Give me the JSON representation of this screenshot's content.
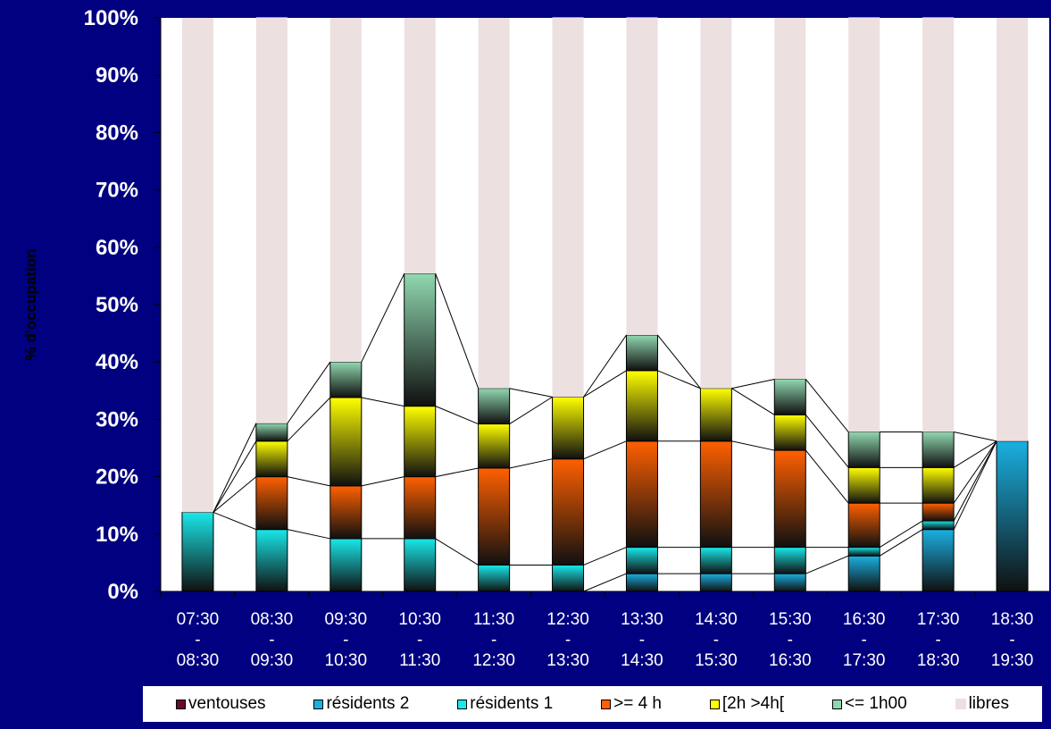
{
  "chart_data": {
    "type": "bar",
    "stacked": true,
    "ylabel": "% d'occupation",
    "ylim": [
      0,
      100
    ],
    "yticks": [
      "0%",
      "10%",
      "20%",
      "30%",
      "40%",
      "50%",
      "60%",
      "70%",
      "80%",
      "90%",
      "100%"
    ],
    "categories": [
      [
        "07:30",
        "-",
        "08:30"
      ],
      [
        "08:30",
        "-",
        "09:30"
      ],
      [
        "09:30",
        "-",
        "10:30"
      ],
      [
        "10:30",
        "-",
        "11:30"
      ],
      [
        "11:30",
        "-",
        "12:30"
      ],
      [
        "12:30",
        "-",
        "13:30"
      ],
      [
        "13:30",
        "-",
        "14:30"
      ],
      [
        "14:30",
        "-",
        "15:30"
      ],
      [
        "15:30",
        "-",
        "16:30"
      ],
      [
        "16:30",
        "-",
        "17:30"
      ],
      [
        "17:30",
        "-",
        "18:30"
      ],
      [
        "18:30",
        "-",
        "19:30"
      ]
    ],
    "series": [
      {
        "name": "ventouses",
        "color": "#6a0a2a",
        "values": [
          0,
          0,
          0,
          0,
          0,
          0,
          0,
          0,
          0,
          0,
          0,
          0
        ]
      },
      {
        "name": "résidents 2",
        "color": "#1ab0e0",
        "values": [
          0,
          0,
          0,
          0,
          0,
          0,
          3.1,
          3.1,
          3.1,
          6.2,
          10.8,
          26.2
        ]
      },
      {
        "name": "résidents 1",
        "color": "#19e8ea",
        "values": [
          13.8,
          10.8,
          9.2,
          9.2,
          4.6,
          4.6,
          4.6,
          4.6,
          4.6,
          1.5,
          1.5,
          0
        ]
      },
      {
        "name": ">= 4 h",
        "color": "#ff6000",
        "values": [
          0,
          9.2,
          9.2,
          10.8,
          16.9,
          18.5,
          18.5,
          18.5,
          16.9,
          7.7,
          3.1,
          0
        ]
      },
      {
        "name": "[2h >4h[",
        "color": "#ffff00",
        "values": [
          0,
          6.2,
          15.4,
          12.3,
          7.7,
          10.8,
          12.3,
          9.2,
          6.2,
          6.2,
          6.2,
          0
        ]
      },
      {
        "name": "<= 1h00",
        "color": "#90d8b0",
        "values": [
          0,
          3.1,
          6.2,
          23.1,
          6.2,
          0,
          6.2,
          0,
          6.2,
          6.2,
          6.2,
          0
        ]
      },
      {
        "name": "libres",
        "color": "#ece0e0",
        "values": [
          86.2,
          70.8,
          60.0,
          44.6,
          64.6,
          66.2,
          55.4,
          64.6,
          63.0,
          72.3,
          72.3,
          73.8
        ]
      }
    ],
    "connector_lines": true,
    "grid": false,
    "legend_position": "bottom"
  }
}
